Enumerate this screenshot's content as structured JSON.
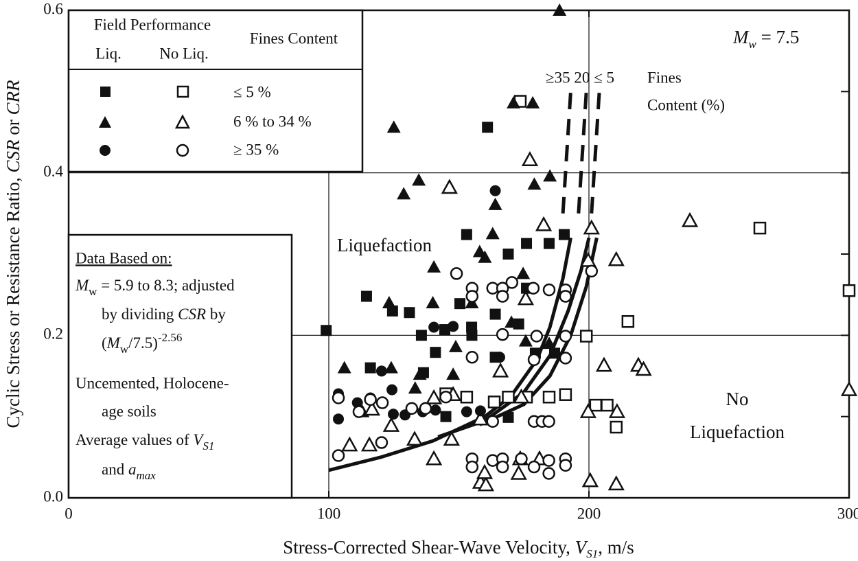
{
  "chart_data": {
    "type": "scatter",
    "xlabel_parts": [
      "Stress-Corrected Shear-Wave Velocity, ",
      "V",
      "S1",
      ", m/s"
    ],
    "ylabel_parts": [
      "Cyclic Stress or Resistance Ratio, ",
      "CSR",
      " or ",
      "CRR"
    ],
    "xlim": [
      0,
      300
    ],
    "ylim": [
      0,
      0.6
    ],
    "xticks": [
      0,
      100,
      200,
      300
    ],
    "yticks": [
      {
        "value": 0,
        "label": "0.0"
      },
      {
        "value": 0.2,
        "label": "0.2"
      },
      {
        "value": 0.4,
        "label": "0.4"
      },
      {
        "value": 0.6,
        "label": "0.6"
      }
    ],
    "y_minor_ticks": [
      0.1,
      0.3,
      0.5
    ],
    "grid": true,
    "legend": {
      "title": "Field Performance",
      "liq": "Liq.",
      "no_liq": "No Liq.",
      "fines_header": "Fines Content",
      "rows": [
        "≤ 5 %",
        "6 % to 34 %",
        "≥ 35 %"
      ]
    },
    "magnitude": [
      "M",
      "w",
      " = 7.5"
    ],
    "curve_label": "≥35 20 ≤ 5",
    "fines_label": [
      "Fines",
      "Content (%)"
    ],
    "regions": [
      "Liquefaction",
      "No",
      "Liquefaction"
    ],
    "notes": [
      "Data Based on:",
      "M",
      "w",
      " = 5.9 to 8.3; adjusted",
      "by dividing ",
      "CSR",
      " by",
      "(",
      "M",
      "w",
      "/7.5)",
      "-2.56",
      "Uncemented, Holocene-",
      "age soils",
      "Average values of ",
      "V",
      "S1",
      "and ",
      "a",
      "max"
    ],
    "color": "#111111",
    "series": [
      {
        "marker": "square",
        "filled": true,
        "x": [
          99,
          114.5,
          124.5,
          131,
          135.6,
          136.4,
          141,
          144.6,
          153,
          150.4,
          154.9,
          155,
          161,
          164,
          169,
          173,
          176,
          184.7,
          190.5,
          179.4,
          186.8,
          164,
          169,
          116,
          145,
          176
        ],
        "y": [
          0.206,
          0.248,
          0.23,
          0.228,
          0.2,
          0.154,
          0.179,
          0.207,
          0.324,
          0.239,
          0.21,
          0.2,
          0.456,
          0.226,
          0.3,
          0.214,
          0.313,
          0.313,
          0.324,
          0.178,
          0.178,
          0.173,
          0.099,
          0.16,
          0.1,
          0.258
        ]
      },
      {
        "marker": "square",
        "filled": false,
        "x": [
          173.6,
          153,
          163.6,
          169,
          176,
          184.7,
          191,
          199,
          202.6,
          207,
          210.5,
          215,
          265.7,
          300,
          145
        ],
        "y": [
          0.488,
          0.124,
          0.118,
          0.124,
          0.124,
          0.124,
          0.127,
          0.199,
          0.114,
          0.114,
          0.087,
          0.217,
          0.332,
          0.255,
          0.128
        ]
      },
      {
        "marker": "triangle",
        "filled": true,
        "x": [
          125,
          128.8,
          134.6,
          140.4,
          158,
          163,
          164,
          171,
          178.4,
          179,
          185,
          188.7,
          106,
          123.2,
          124,
          140,
          148.8,
          155,
          160,
          174.7,
          170.2,
          135,
          113,
          133.2,
          147.8,
          175.7,
          184.7
        ],
        "y": [
          0.456,
          0.374,
          0.391,
          0.284,
          0.303,
          0.325,
          0.361,
          0.486,
          0.486,
          0.386,
          0.396,
          0.6,
          0.16,
          0.24,
          0.16,
          0.24,
          0.186,
          0.24,
          0.296,
          0.276,
          0.216,
          0.152,
          0.106,
          0.135,
          0.152,
          0.193,
          0.19
        ]
      },
      {
        "marker": "triangle",
        "filled": false,
        "x": [
          146.4,
          177.3,
          182.6,
          201,
          199.7,
          210.5,
          238.8,
          205.8,
          219,
          221,
          300,
          199.7,
          210.8,
          200.5,
          210.5,
          158.3,
          160.4,
          159.9,
          173,
          181,
          173.6,
          140.4,
          147.2,
          133,
          115.6,
          108,
          124,
          140.4,
          147.8,
          158.3,
          175.7,
          174,
          166,
          116.6
        ],
        "y": [
          0.382,
          0.416,
          0.336,
          0.332,
          0.292,
          0.293,
          0.341,
          0.163,
          0.163,
          0.158,
          0.133,
          0.106,
          0.106,
          0.021,
          0.017,
          0.019,
          0.016,
          0.031,
          0.03,
          0.048,
          0.048,
          0.048,
          0.072,
          0.072,
          0.065,
          0.065,
          0.089,
          0.123,
          0.127,
          0.097,
          0.245,
          0.124,
          0.156,
          0.109
        ]
      },
      {
        "marker": "circle",
        "filled": true,
        "x": [
          103.7,
          103.7,
          111,
          116,
          120.3,
          124.3,
          124.8,
          129.3,
          136.1,
          141,
          140.4,
          147.8,
          164,
          158.3,
          165.7,
          153
        ],
        "y": [
          0.128,
          0.097,
          0.117,
          0.123,
          0.156,
          0.133,
          0.103,
          0.102,
          0.106,
          0.108,
          0.21,
          0.211,
          0.378,
          0.107,
          0.173,
          0.106
        ]
      },
      {
        "marker": "circle",
        "filled": false,
        "x": [
          103.7,
          103.7,
          111.6,
          116,
          120.3,
          120.6,
          149.1,
          155.1,
          155.1,
          163,
          166.8,
          170.4,
          166.8,
          178.6,
          184.7,
          191,
          191,
          201,
          166.8,
          179.9,
          191,
          178.9,
          191,
          155.1,
          155.1,
          155.1,
          163,
          166.8,
          166.8,
          174,
          178.9,
          178.9,
          182,
          184.6,
          184.6,
          184.6,
          191,
          191,
          163,
          137.2,
          131.9,
          145
        ],
        "y": [
          0.052,
          0.123,
          0.106,
          0.121,
          0.068,
          0.117,
          0.276,
          0.258,
          0.248,
          0.258,
          0.258,
          0.265,
          0.248,
          0.258,
          0.256,
          0.256,
          0.248,
          0.279,
          0.201,
          0.199,
          0.199,
          0.17,
          0.172,
          0.173,
          0.048,
          0.038,
          0.046,
          0.048,
          0.038,
          0.048,
          0.038,
          0.094,
          0.094,
          0.094,
          0.046,
          0.03,
          0.048,
          0.04,
          0.094,
          0.11,
          0.11,
          0.124
        ]
      }
    ],
    "curves": [
      {
        "x": [
          100,
          120,
          140,
          160,
          170,
          180,
          185,
          190,
          193
        ],
        "y": [
          0.034,
          0.05,
          0.07,
          0.1,
          0.125,
          0.17,
          0.21,
          0.27,
          0.32
        ],
        "dash_x": [
          190,
          193
        ],
        "dash_y": [
          0.35,
          0.5
        ]
      },
      {
        "x": [
          142,
          160,
          175,
          185,
          192,
          197,
          200
        ],
        "y": [
          0.075,
          0.095,
          0.13,
          0.175,
          0.23,
          0.28,
          0.32
        ],
        "dash_x": [
          196,
          199
        ],
        "dash_y": [
          0.35,
          0.5
        ]
      },
      {
        "x": [
          158,
          175,
          185,
          193,
          199,
          203
        ],
        "y": [
          0.09,
          0.115,
          0.15,
          0.2,
          0.26,
          0.32
        ],
        "dash_x": [
          201,
          204
        ],
        "dash_y": [
          0.35,
          0.5
        ]
      }
    ]
  }
}
